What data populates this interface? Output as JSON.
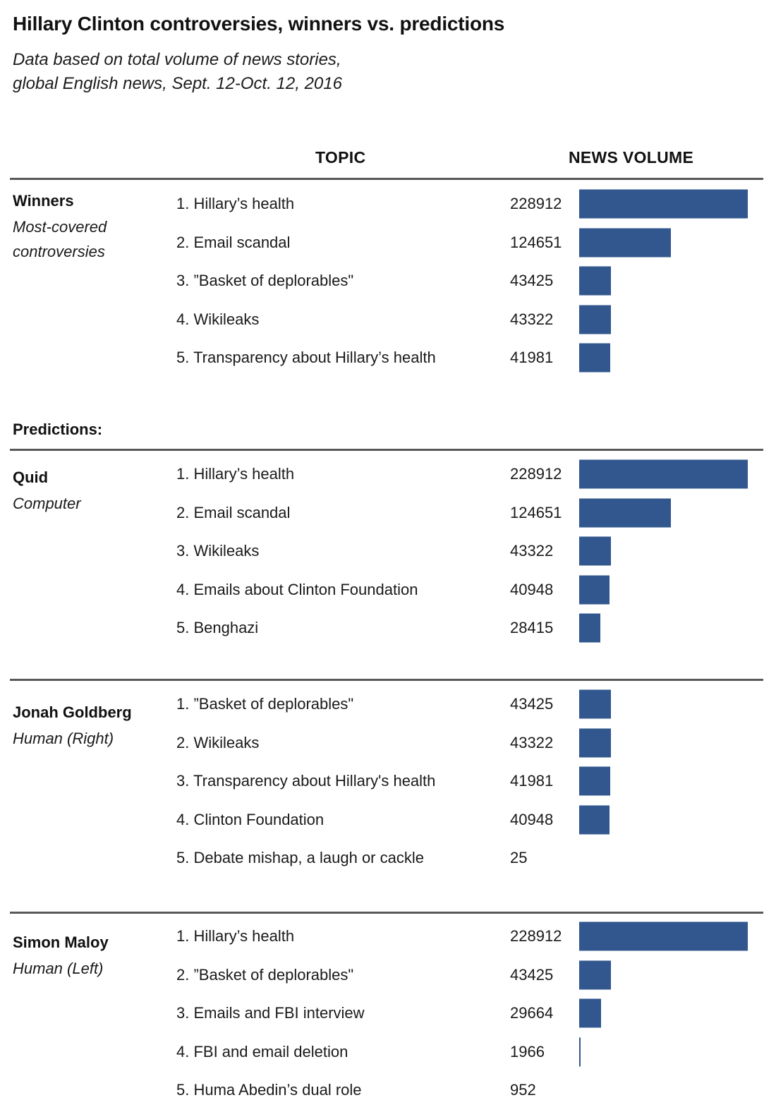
{
  "title": "Hillary Clinton controversies, winners vs. predictions",
  "subtitle": {
    "line1": "Data based on total volume of news stories,",
    "line2": "global English news, Sept. 12-Oct. 12, 2016"
  },
  "column_headers": {
    "topic": "TOPIC",
    "news_volume": "NEWS VOLUME"
  },
  "predictions_heading": "Predictions:",
  "colors": {
    "bar": "#31578E",
    "rule": "#58585A",
    "text": "#1A1A1A"
  },
  "chart_data": {
    "type": "bar",
    "orientation": "horizontal",
    "title": "Hillary Clinton controversies, winners vs. predictions",
    "subtitle": "Data based on total volume of news stories, global English news, Sept. 12-Oct. 12, 2016",
    "category_axis_label": "TOPIC",
    "value_axis_label": "NEWS VOLUME",
    "value_range": [
      0,
      228912
    ],
    "legend": false,
    "groups": [
      {
        "name": "Winners",
        "subtitle": "Most-covered controversies",
        "items": [
          {
            "rank": 1,
            "topic": "Hillary’s health",
            "value": 228912
          },
          {
            "rank": 2,
            "topic": "Email scandal",
            "value": 124651
          },
          {
            "rank": 3,
            "topic": "”Basket of deplorables\"",
            "value": 43425
          },
          {
            "rank": 4,
            "topic": "Wikileaks",
            "value": 43322
          },
          {
            "rank": 5,
            "topic": "Transparency about Hillary’s health",
            "value": 41981
          }
        ]
      },
      {
        "name": "Quid",
        "subtitle": "Computer",
        "items": [
          {
            "rank": 1,
            "topic": "Hillary’s health",
            "value": 228912
          },
          {
            "rank": 2,
            "topic": "Email scandal",
            "value": 124651
          },
          {
            "rank": 3,
            "topic": "Wikileaks",
            "value": 43322
          },
          {
            "rank": 4,
            "topic": "Emails about Clinton Foundation",
            "value": 40948
          },
          {
            "rank": 5,
            "topic": "Benghazi",
            "value": 28415
          }
        ]
      },
      {
        "name": "Jonah Goldberg",
        "subtitle": "Human (Right)",
        "items": [
          {
            "rank": 1,
            "topic": "”Basket of deplorables\"",
            "value": 43425
          },
          {
            "rank": 2,
            "topic": "Wikileaks",
            "value": 43322
          },
          {
            "rank": 3,
            "topic": "Transparency about Hillary's health",
            "value": 41981
          },
          {
            "rank": 4,
            "topic": "Clinton Foundation",
            "value": 40948
          },
          {
            "rank": 5,
            "topic": "Debate mishap, a laugh or cackle",
            "value": 25
          }
        ]
      },
      {
        "name": "Simon Maloy",
        "subtitle": "Human (Left)",
        "items": [
          {
            "rank": 1,
            "topic": "Hillary’s health",
            "value": 228912
          },
          {
            "rank": 2,
            "topic": "”Basket of deplorables\"",
            "value": 43425
          },
          {
            "rank": 3,
            "topic": "Emails and FBI interview",
            "value": 29664
          },
          {
            "rank": 4,
            "topic": "FBI and email deletion",
            "value": 1966
          },
          {
            "rank": 5,
            "topic": "Huma Abedin’s dual role",
            "value": 952
          }
        ]
      }
    ]
  }
}
